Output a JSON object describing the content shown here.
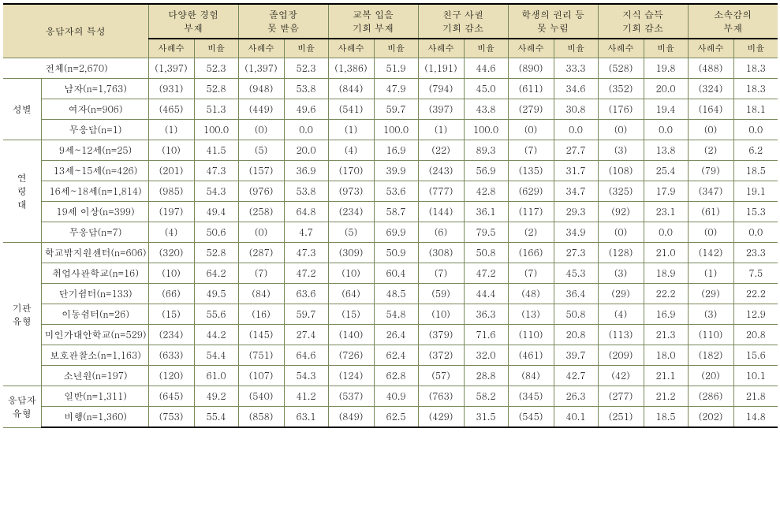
{
  "header": {
    "respondent_char": "응답자의 특성",
    "groups": [
      {
        "title": "다양한 경험\n부재",
        "count_label": "사례수",
        "ratio_label": "비율"
      },
      {
        "title": "졸업장\n못 받음",
        "count_label": "사례수",
        "ratio_label": "비율"
      },
      {
        "title": "교복 입을\n기회 부재",
        "count_label": "사례수",
        "ratio_label": "비율"
      },
      {
        "title": "친구 사귈\n기회 감소",
        "count_label": "사례수",
        "ratio_label": "비율"
      },
      {
        "title": "학생의 권리 등\n못 누림",
        "count_label": "사례수",
        "ratio_label": "비율"
      },
      {
        "title": "지식 습득\n기회 감소",
        "count_label": "사례수",
        "ratio_label": "비율"
      },
      {
        "title": "소속감의\n부재",
        "count_label": "사례수",
        "ratio_label": "비율"
      }
    ]
  },
  "sections": [
    {
      "category": null,
      "rows": [
        {
          "label": "전체(n=2,670)",
          "cells": [
            [
              "(1,397)",
              "52.3"
            ],
            [
              "(1,397)",
              "52.3"
            ],
            [
              "(1,386)",
              "51.9"
            ],
            [
              "(1,191)",
              "44.6"
            ],
            [
              "(890)",
              "33.3"
            ],
            [
              "(528)",
              "19.8"
            ],
            [
              "(488)",
              "18.3"
            ]
          ]
        }
      ]
    },
    {
      "category": "성별",
      "rows": [
        {
          "label": "남자(n=1,763)",
          "cells": [
            [
              "(931)",
              "52.8"
            ],
            [
              "(948)",
              "53.8"
            ],
            [
              "(844)",
              "47.9"
            ],
            [
              "(794)",
              "45.0"
            ],
            [
              "(611)",
              "34.6"
            ],
            [
              "(352)",
              "20.0"
            ],
            [
              "(324)",
              "18.3"
            ]
          ]
        },
        {
          "label": "여자(n=906)",
          "cells": [
            [
              "(465)",
              "51.3"
            ],
            [
              "(449)",
              "49.6"
            ],
            [
              "(541)",
              "59.7"
            ],
            [
              "(397)",
              "43.8"
            ],
            [
              "(279)",
              "30.8"
            ],
            [
              "(176)",
              "19.4"
            ],
            [
              "(164)",
              "18.1"
            ]
          ]
        },
        {
          "label": "무응답(n=1)",
          "cells": [
            [
              "(1)",
              "100.0"
            ],
            [
              "(0)",
              "0.0"
            ],
            [
              "(1)",
              "100.0"
            ],
            [
              "(1)",
              "100.0"
            ],
            [
              "(0)",
              "0.0"
            ],
            [
              "(0)",
              "0.0"
            ],
            [
              "(0)",
              "0.0"
            ]
          ]
        }
      ]
    },
    {
      "category": "연\n령\n대",
      "rows": [
        {
          "label": "9세~12세(n=25)",
          "cells": [
            [
              "(10)",
              "41.5"
            ],
            [
              "(5)",
              "20.0"
            ],
            [
              "(4)",
              "16.9"
            ],
            [
              "(22)",
              "89.3"
            ],
            [
              "(7)",
              "27.7"
            ],
            [
              "(3)",
              "13.8"
            ],
            [
              "(2)",
              "6.2"
            ]
          ]
        },
        {
          "label": "13세~15세(n=426)",
          "cells": [
            [
              "(201)",
              "47.3"
            ],
            [
              "(157)",
              "36.9"
            ],
            [
              "(170)",
              "39.9"
            ],
            [
              "(243)",
              "56.9"
            ],
            [
              "(135)",
              "31.7"
            ],
            [
              "(108)",
              "25.4"
            ],
            [
              "(79)",
              "18.5"
            ]
          ]
        },
        {
          "label": "16세~18세(n=1,814)",
          "cells": [
            [
              "(985)",
              "54.3"
            ],
            [
              "(976)",
              "53.8"
            ],
            [
              "(973)",
              "53.6"
            ],
            [
              "(777)",
              "42.8"
            ],
            [
              "(629)",
              "34.7"
            ],
            [
              "(325)",
              "17.9"
            ],
            [
              "(347)",
              "19.1"
            ]
          ]
        },
        {
          "label": "19세 이상(n=399)",
          "cells": [
            [
              "(197)",
              "49.4"
            ],
            [
              "(258)",
              "64.8"
            ],
            [
              "(234)",
              "58.7"
            ],
            [
              "(144)",
              "36.1"
            ],
            [
              "(117)",
              "29.3"
            ],
            [
              "(92)",
              "23.1"
            ],
            [
              "(61)",
              "15.3"
            ]
          ]
        },
        {
          "label": "무응답(n=7)",
          "cells": [
            [
              "(4)",
              "50.6"
            ],
            [
              "(0)",
              "4.7"
            ],
            [
              "(5)",
              "69.9"
            ],
            [
              "(6)",
              "79.5"
            ],
            [
              "(2)",
              "34.9"
            ],
            [
              "(0)",
              "0.0"
            ],
            [
              "(0)",
              "0.0"
            ]
          ]
        }
      ]
    },
    {
      "category": "기관\n유형",
      "rows": [
        {
          "label": "학교밖지원센터(n=606)",
          "cells": [
            [
              "(320)",
              "52.8"
            ],
            [
              "(287)",
              "47.3"
            ],
            [
              "(309)",
              "50.9"
            ],
            [
              "(308)",
              "50.8"
            ],
            [
              "(166)",
              "27.3"
            ],
            [
              "(128)",
              "21.0"
            ],
            [
              "(142)",
              "23.3"
            ]
          ]
        },
        {
          "label": "취업사관학교(n=16)",
          "cells": [
            [
              "(10)",
              "64.2"
            ],
            [
              "(7)",
              "47.2"
            ],
            [
              "(10)",
              "60.4"
            ],
            [
              "(7)",
              "47.2"
            ],
            [
              "(7)",
              "45.3"
            ],
            [
              "(3)",
              "18.9"
            ],
            [
              "(1)",
              "7.5"
            ]
          ]
        },
        {
          "label": "단기쉼터(n=133)",
          "cells": [
            [
              "(66)",
              "49.5"
            ],
            [
              "(84)",
              "63.6"
            ],
            [
              "(64)",
              "48.5"
            ],
            [
              "(59)",
              "44.4"
            ],
            [
              "(48)",
              "36.4"
            ],
            [
              "(29)",
              "22.2"
            ],
            [
              "(29)",
              "22.2"
            ]
          ]
        },
        {
          "label": "이동쉼터(n=26)",
          "cells": [
            [
              "(15)",
              "55.6"
            ],
            [
              "(16)",
              "59.7"
            ],
            [
              "(15)",
              "54.8"
            ],
            [
              "(10)",
              "36.3"
            ],
            [
              "(13)",
              "50.8"
            ],
            [
              "(4)",
              "16.9"
            ],
            [
              "(3)",
              "12.9"
            ]
          ]
        },
        {
          "label": "미인가대안학교(n=529)",
          "cells": [
            [
              "(234)",
              "44.2"
            ],
            [
              "(145)",
              "27.4"
            ],
            [
              "(140)",
              "26.4"
            ],
            [
              "(379)",
              "71.6"
            ],
            [
              "(110)",
              "20.8"
            ],
            [
              "(113)",
              "21.3"
            ],
            [
              "(110)",
              "20.8"
            ]
          ]
        },
        {
          "label": "보호관찰소(n=1,163)",
          "cells": [
            [
              "(633)",
              "54.4"
            ],
            [
              "(751)",
              "64.6"
            ],
            [
              "(726)",
              "62.4"
            ],
            [
              "(372)",
              "32.0"
            ],
            [
              "(461)",
              "39.7"
            ],
            [
              "(209)",
              "18.0"
            ],
            [
              "(182)",
              "15.6"
            ]
          ]
        },
        {
          "label": "소년원(n=197)",
          "cells": [
            [
              "(120)",
              "61.0"
            ],
            [
              "(107)",
              "54.3"
            ],
            [
              "(124)",
              "62.8"
            ],
            [
              "(57)",
              "28.8"
            ],
            [
              "(84)",
              "42.7"
            ],
            [
              "(42)",
              "21.1"
            ],
            [
              "(20)",
              "10.1"
            ]
          ]
        }
      ]
    },
    {
      "category": "응답자\n유형",
      "rows": [
        {
          "label": "일반(n=1,311)",
          "cells": [
            [
              "(645)",
              "49.2"
            ],
            [
              "(540)",
              "41.2"
            ],
            [
              "(537)",
              "40.9"
            ],
            [
              "(763)",
              "58.2"
            ],
            [
              "(345)",
              "26.3"
            ],
            [
              "(277)",
              "21.2"
            ],
            [
              "(286)",
              "21.8"
            ]
          ]
        },
        {
          "label": "비행(n=1,360)",
          "cells": [
            [
              "(753)",
              "55.4"
            ],
            [
              "(858)",
              "63.1"
            ],
            [
              "(849)",
              "62.5"
            ],
            [
              "(429)",
              "31.5"
            ],
            [
              "(545)",
              "40.1"
            ],
            [
              "(251)",
              "18.5"
            ],
            [
              "(202)",
              "14.8"
            ]
          ]
        }
      ]
    }
  ]
}
